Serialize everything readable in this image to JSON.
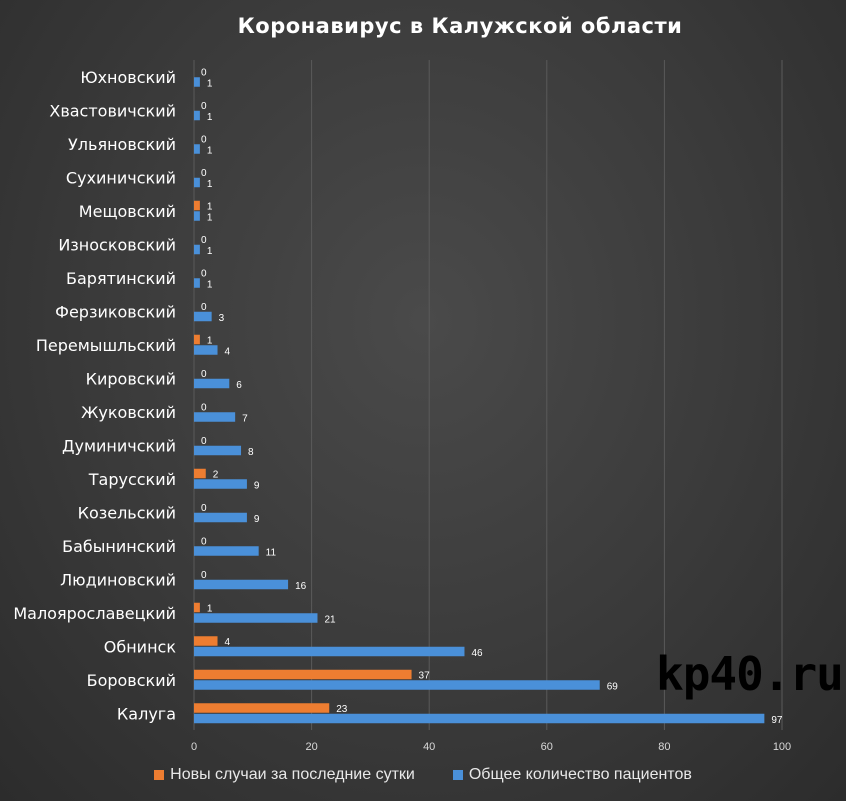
{
  "title": "Коронавирус  в Калужской  области",
  "watermark": "kp40.ru",
  "colors": {
    "new": "#ED7D31",
    "total": "#4A90D9",
    "grid": "#5a5a5a",
    "text": "#ffffff"
  },
  "chart_data": {
    "type": "bar",
    "orientation": "horizontal",
    "categories": [
      "Калуга",
      "Боровский",
      "Обнинск",
      "Малоярославецкий",
      "Людиновский",
      "Бабынинский",
      "Козельский",
      "Тарусский",
      "Думиничский",
      "Жуковский",
      "Кировский",
      "Перемышльский",
      "Ферзиковский",
      "Барятинский",
      "Износковский",
      "Мещовский",
      "Сухиничский",
      "Ульяновский",
      "Хвастовичский",
      "Юхновский"
    ],
    "series": [
      {
        "name": "Новы случаи за последние сутки",
        "values": [
          23,
          37,
          4,
          1,
          0,
          0,
          0,
          2,
          0,
          0,
          0,
          1,
          0,
          0,
          0,
          1,
          0,
          0,
          0,
          0
        ]
      },
      {
        "name": "Общее количество пациентов",
        "values": [
          97,
          69,
          46,
          21,
          16,
          11,
          9,
          9,
          8,
          7,
          6,
          4,
          3,
          1,
          1,
          1,
          1,
          1,
          1,
          1
        ]
      }
    ],
    "xlim": [
      0,
      100
    ],
    "xticks": [
      0,
      20,
      40,
      60,
      80,
      100
    ],
    "grid": true,
    "legend_position": "bottom"
  }
}
